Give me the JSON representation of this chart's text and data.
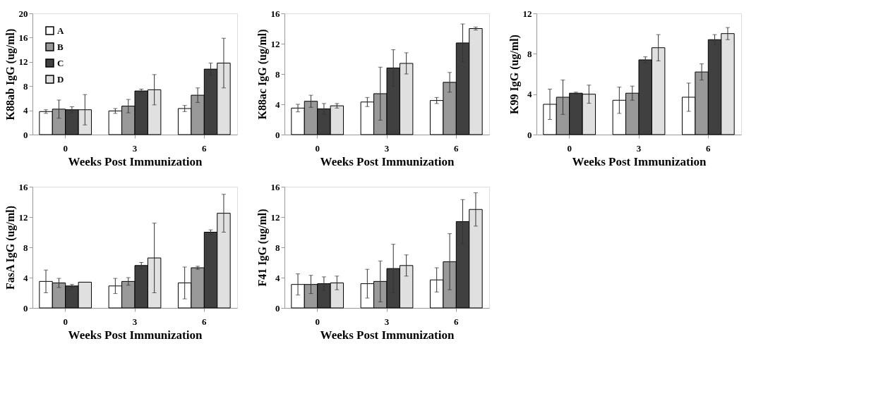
{
  "chart_data": [
    {
      "type": "bar",
      "xlabel": "Weeks Post Immunization",
      "ylabel": "K88ab IgG (ug/ml)",
      "categories": [
        "0",
        "3",
        "6"
      ],
      "ylim": [
        0,
        20
      ],
      "yticks": [
        0,
        4,
        8,
        12,
        16,
        20
      ],
      "grid": false,
      "legend": "top left",
      "series": [
        {
          "name": "A",
          "color": "#ffffff",
          "values": [
            3.8,
            3.9,
            4.3
          ],
          "errors": [
            0.3,
            0.4,
            0.5
          ]
        },
        {
          "name": "B",
          "color": "#999999",
          "values": [
            4.2,
            4.7,
            6.5
          ],
          "errors": [
            1.5,
            1.1,
            1.2
          ]
        },
        {
          "name": "C",
          "color": "#404040",
          "values": [
            4.1,
            7.2,
            10.8
          ],
          "errors": [
            0.5,
            0.3,
            1.0
          ]
        },
        {
          "name": "D",
          "color": "#e0e0e0",
          "values": [
            4.1,
            7.4,
            11.8
          ],
          "errors": [
            2.5,
            2.5,
            4.1
          ]
        }
      ]
    },
    {
      "type": "bar",
      "xlabel": "Weeks Post Immunization",
      "ylabel": "K88ac IgG (ug/ml)",
      "categories": [
        "0",
        "3",
        "6"
      ],
      "ylim": [
        0,
        16
      ],
      "yticks": [
        0,
        4,
        8,
        12,
        16
      ],
      "grid": false,
      "series": [
        {
          "color": "#ffffff",
          "values": [
            3.5,
            4.3,
            4.5
          ],
          "errors": [
            0.5,
            0.6,
            0.4
          ]
        },
        {
          "color": "#999999",
          "values": [
            4.4,
            5.4,
            6.9
          ],
          "errors": [
            0.8,
            3.5,
            1.3
          ]
        },
        {
          "color": "#404040",
          "values": [
            3.4,
            8.8,
            12.1
          ],
          "errors": [
            0.7,
            2.4,
            2.5
          ]
        },
        {
          "color": "#e0e0e0",
          "values": [
            3.8,
            9.4,
            14.0
          ],
          "errors": [
            0.3,
            1.4,
            0.2
          ]
        }
      ]
    },
    {
      "type": "bar",
      "xlabel": "Weeks Post Immunization",
      "ylabel": "K99 IgG (ug/ml)",
      "categories": [
        "0",
        "3",
        "6"
      ],
      "ylim": [
        0,
        12
      ],
      "yticks": [
        0,
        4,
        8,
        12
      ],
      "grid": false,
      "series": [
        {
          "color": "#ffffff",
          "values": [
            3.0,
            3.4,
            3.7
          ],
          "errors": [
            1.5,
            1.3,
            1.4
          ]
        },
        {
          "color": "#999999",
          "values": [
            3.7,
            4.1,
            6.2
          ],
          "errors": [
            1.7,
            0.7,
            0.8
          ]
        },
        {
          "color": "#404040",
          "values": [
            4.1,
            7.4,
            9.4
          ],
          "errors": [
            0.1,
            0.3,
            0.5
          ]
        },
        {
          "color": "#e0e0e0",
          "values": [
            4.0,
            8.6,
            10.0
          ],
          "errors": [
            0.9,
            1.3,
            0.6
          ]
        }
      ]
    },
    {
      "type": "bar",
      "xlabel": "Weeks Post Immunization",
      "ylabel": "FasA IgG (ug/ml)",
      "categories": [
        "0",
        "3",
        "6"
      ],
      "ylim": [
        0,
        16
      ],
      "yticks": [
        0,
        4,
        8,
        12,
        16
      ],
      "grid": false,
      "series": [
        {
          "color": "#ffffff",
          "values": [
            3.5,
            2.9,
            3.3
          ],
          "errors": [
            1.5,
            1.0,
            2.1
          ]
        },
        {
          "color": "#999999",
          "values": [
            3.3,
            3.5,
            5.3
          ],
          "errors": [
            0.6,
            0.5,
            0.2
          ]
        },
        {
          "color": "#404040",
          "values": [
            2.9,
            5.6,
            10.0
          ],
          "errors": [
            0.2,
            0.4,
            0.3
          ]
        },
        {
          "color": "#e0e0e0",
          "values": [
            3.4,
            6.6,
            12.5
          ],
          "errors": [
            null,
            4.6,
            2.5
          ]
        }
      ]
    },
    {
      "type": "bar",
      "xlabel": "Weeks Post Immunization",
      "ylabel": "F41 IgG (ug/ml)",
      "categories": [
        "0",
        "3",
        "6"
      ],
      "ylim": [
        0,
        16
      ],
      "yticks": [
        0,
        4,
        8,
        12,
        16
      ],
      "grid": false,
      "series": [
        {
          "color": "#ffffff",
          "values": [
            3.1,
            3.2,
            3.7
          ],
          "errors": [
            1.4,
            1.9,
            1.6
          ]
        },
        {
          "color": "#999999",
          "values": [
            3.1,
            3.5,
            6.1
          ],
          "errors": [
            1.2,
            2.7,
            3.7
          ]
        },
        {
          "color": "#404040",
          "values": [
            3.2,
            5.2,
            11.4
          ],
          "errors": [
            0.9,
            3.2,
            2.9
          ]
        },
        {
          "color": "#e0e0e0",
          "values": [
            3.3,
            5.6,
            13.0
          ],
          "errors": [
            0.9,
            1.4,
            2.2
          ]
        }
      ]
    }
  ]
}
